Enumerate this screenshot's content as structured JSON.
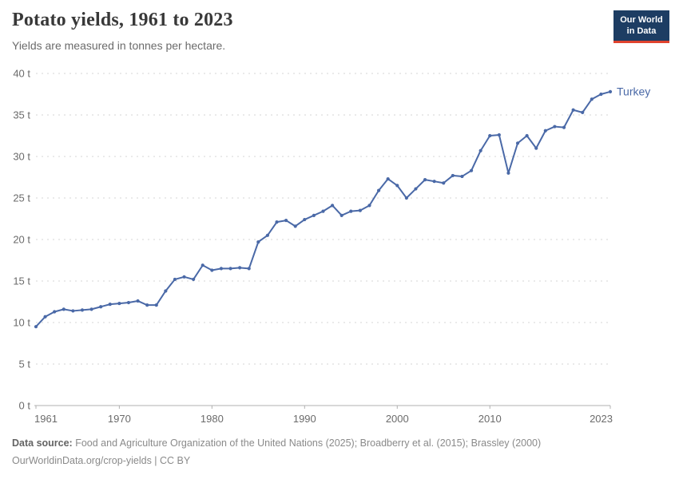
{
  "header": {
    "title": "Potato yields, 1961 to 2023",
    "subtitle": "Yields are measured in tonnes per hectare.",
    "logo": {
      "line1": "Our World",
      "line2": "in Data"
    }
  },
  "chart_data": {
    "type": "line",
    "title": "Potato yields, 1961 to 2023",
    "ylabel": "",
    "xlabel": "",
    "unit": "tonnes per hectare",
    "xlim": [
      1961,
      2023
    ],
    "ylim": [
      0,
      40
    ],
    "x_ticks": [
      1961,
      1970,
      1980,
      1990,
      2000,
      2010,
      2023
    ],
    "y_ticks": [
      0,
      5,
      10,
      15,
      20,
      25,
      30,
      35,
      40
    ],
    "y_tick_suffix": " t",
    "grid": "horizontal-dashed",
    "legend_position": "end-of-line-label",
    "series": [
      {
        "name": "Turkey",
        "color": "#4a69a7",
        "x": [
          1961,
          1962,
          1963,
          1964,
          1965,
          1966,
          1967,
          1968,
          1969,
          1970,
          1971,
          1972,
          1973,
          1974,
          1975,
          1976,
          1977,
          1978,
          1979,
          1980,
          1981,
          1982,
          1983,
          1984,
          1985,
          1986,
          1987,
          1988,
          1989,
          1990,
          1991,
          1992,
          1993,
          1994,
          1995,
          1996,
          1997,
          1998,
          1999,
          2000,
          2001,
          2002,
          2003,
          2004,
          2005,
          2006,
          2007,
          2008,
          2009,
          2010,
          2011,
          2012,
          2013,
          2014,
          2015,
          2016,
          2017,
          2018,
          2019,
          2020,
          2021,
          2022,
          2023
        ],
        "values": [
          9.5,
          10.7,
          11.3,
          11.6,
          11.4,
          11.5,
          11.6,
          11.9,
          12.2,
          12.3,
          12.4,
          12.6,
          12.1,
          12.1,
          13.8,
          15.2,
          15.5,
          15.2,
          16.9,
          16.3,
          16.5,
          16.5,
          16.6,
          16.5,
          19.7,
          20.5,
          22.1,
          22.3,
          21.6,
          22.4,
          22.9,
          23.4,
          24.1,
          22.9,
          23.4,
          23.5,
          24.1,
          25.9,
          27.3,
          26.5,
          25.0,
          26.1,
          27.2,
          27.0,
          26.8,
          27.7,
          27.6,
          28.3,
          30.7,
          32.5,
          32.6,
          28.0,
          31.6,
          32.5,
          31.0,
          33.1,
          33.6,
          33.5,
          35.6,
          35.3,
          36.9,
          37.5,
          37.8
        ]
      }
    ]
  },
  "footer": {
    "source_label": "Data source:",
    "source_text": " Food and Agriculture Organization of the United Nations (2025); Broadberry et al. (2015); Brassley (2000)",
    "link_line": "OurWorldinData.org/crop-yields | CC BY"
  },
  "colors": {
    "line": "#4a69a7",
    "grid": "#d5d5d5",
    "axis": "#b0b0b0",
    "tick_text": "#6b6b6b",
    "title_text": "#383838",
    "logo_bg": "#1d3d63",
    "logo_red": "#e0432e",
    "footer_text": "#8a8a8a"
  }
}
